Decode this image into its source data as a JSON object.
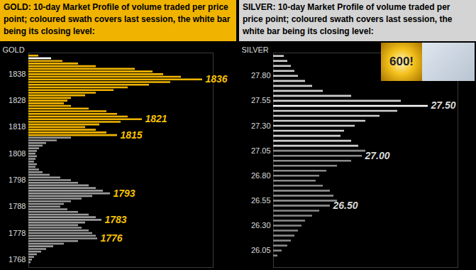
{
  "chart_data": [
    {
      "type": "bar",
      "title": "GOLD:  10-day Market Profile of volume traded per price point; coloured swath covers last session, the white bar being its closing level:",
      "y_label": "GOLD",
      "orientation": "horizontal",
      "tick_labels": "y",
      "categories": [
        1845,
        1844,
        1843,
        1842,
        1841,
        1840,
        1839,
        1838,
        1837,
        1836,
        1835,
        1834,
        1833,
        1832,
        1831,
        1830,
        1829,
        1828,
        1827,
        1826,
        1825,
        1824,
        1823,
        1822,
        1821,
        1820,
        1819,
        1818,
        1817,
        1816,
        1815,
        1814,
        1813,
        1812,
        1811,
        1810,
        1809,
        1808,
        1807,
        1806,
        1805,
        1804,
        1803,
        1802,
        1801,
        1800,
        1799,
        1798,
        1797,
        1796,
        1795,
        1794,
        1793,
        1792,
        1791,
        1790,
        1789,
        1788,
        1787,
        1786,
        1785,
        1784,
        1783,
        1782,
        1781,
        1780,
        1779,
        1778,
        1777,
        1776,
        1775,
        1774,
        1773,
        1772,
        1771,
        1770,
        1769,
        1768,
        1767
      ],
      "values": [
        14,
        32,
        48,
        70,
        95,
        150,
        175,
        190,
        215,
        245,
        200,
        170,
        140,
        120,
        95,
        80,
        60,
        55,
        50,
        60,
        85,
        110,
        125,
        140,
        160,
        130,
        100,
        80,
        95,
        110,
        125,
        60,
        40,
        25,
        20,
        15,
        12,
        10,
        12,
        10,
        8,
        12,
        10,
        15,
        20,
        30,
        45,
        60,
        70,
        85,
        95,
        105,
        115,
        90,
        75,
        60,
        50,
        45,
        55,
        70,
        85,
        95,
        103,
        80,
        70,
        75,
        85,
        90,
        95,
        97,
        70,
        50,
        35,
        25,
        18,
        12,
        8,
        5,
        3
      ],
      "colors": [
        "#f0b400",
        "#ffffff",
        "#f0b400",
        "#f0b400",
        "#f0b400",
        "#f0b400",
        "#f0b400",
        "#f0b400",
        "#f0b400",
        "#f0b400",
        "#f0b400",
        "#f0b400",
        "#f0b400",
        "#f0b400",
        "#f0b400",
        "#f0b400",
        "#f0b400",
        "#f0b400",
        "#f0b400",
        "#f0b400",
        "#f0b400",
        "#f0b400",
        "#f0b400",
        "#f0b400",
        "#f0b400",
        "#f0b400",
        "#f0b400",
        "#f0b400",
        "#f0b400",
        "#f0b400",
        "#f0b400",
        "#9a9a9a",
        "#9a9a9a",
        "#9a9a9a",
        "#9a9a9a",
        "#9a9a9a",
        "#9a9a9a",
        "#9a9a9a",
        "#9a9a9a",
        "#9a9a9a",
        "#9a9a9a",
        "#9a9a9a",
        "#9a9a9a",
        "#9a9a9a",
        "#9a9a9a",
        "#9a9a9a",
        "#9a9a9a",
        "#9a9a9a",
        "#9a9a9a",
        "#9a9a9a",
        "#9a9a9a",
        "#9a9a9a",
        "#9a9a9a",
        "#9a9a9a",
        "#9a9a9a",
        "#9a9a9a",
        "#9a9a9a",
        "#9a9a9a",
        "#9a9a9a",
        "#9a9a9a",
        "#9a9a9a",
        "#9a9a9a",
        "#9a9a9a",
        "#9a9a9a",
        "#9a9a9a",
        "#9a9a9a",
        "#9a9a9a",
        "#9a9a9a",
        "#9a9a9a",
        "#9a9a9a",
        "#9a9a9a",
        "#9a9a9a",
        "#9a9a9a",
        "#9a9a9a",
        "#9a9a9a",
        "#9a9a9a",
        "#9a9a9a",
        "#9a9a9a",
        "#9a9a9a"
      ],
      "xlim": [
        0,
        260
      ],
      "ylim": [
        1765,
        1846
      ],
      "yticks": [
        1768,
        1778,
        1788,
        1798,
        1808,
        1818,
        1828,
        1838
      ],
      "annotations": [
        {
          "text": "1836",
          "y": 1836
        },
        {
          "text": "1821",
          "y": 1821
        },
        {
          "text": "1815",
          "y": 1815
        },
        {
          "text": "1793",
          "y": 1793
        },
        {
          "text": "1783",
          "y": 1783
        },
        {
          "text": "1776",
          "y": 1776
        }
      ]
    },
    {
      "type": "bar",
      "title": "SILVER:  10-day Market Profile of volume traded per price point; coloured swath covers last session, the white bar being its closing level:",
      "y_label": "SILVER",
      "orientation": "horizontal",
      "tick_labels": "y",
      "categories": [
        28.0,
        27.95,
        27.9,
        27.85,
        27.8,
        27.75,
        27.7,
        27.65,
        27.6,
        27.55,
        27.5,
        27.45,
        27.4,
        27.35,
        27.3,
        27.25,
        27.2,
        27.15,
        27.1,
        27.05,
        27.0,
        26.95,
        26.9,
        26.85,
        26.8,
        26.75,
        26.7,
        26.65,
        26.6,
        26.55,
        26.5,
        26.45,
        26.4,
        26.35,
        26.3,
        26.25,
        26.2,
        26.15,
        26.1,
        26.05,
        26.0
      ],
      "values": [
        15,
        20,
        25,
        30,
        35,
        45,
        55,
        70,
        110,
        180,
        218,
        175,
        150,
        130,
        115,
        100,
        95,
        110,
        120,
        130,
        125,
        110,
        90,
        75,
        65,
        60,
        70,
        80,
        85,
        90,
        80,
        65,
        55,
        45,
        40,
        35,
        30,
        25,
        20,
        12,
        6
      ],
      "colors": [
        "#cfcfcf",
        "#cfcfcf",
        "#cfcfcf",
        "#cfcfcf",
        "#cfcfcf",
        "#cfcfcf",
        "#cfcfcf",
        "#cfcfcf",
        "#cfcfcf",
        "#cfcfcf",
        "#ffffff",
        "#cfcfcf",
        "#cfcfcf",
        "#cfcfcf",
        "#cfcfcf",
        "#cfcfcf",
        "#cfcfcf",
        "#cfcfcf",
        "#cfcfcf",
        "#8a8a8a",
        "#8a8a8a",
        "#8a8a8a",
        "#8a8a8a",
        "#8a8a8a",
        "#8a8a8a",
        "#8a8a8a",
        "#8a8a8a",
        "#8a8a8a",
        "#8a8a8a",
        "#8a8a8a",
        "#8a8a8a",
        "#8a8a8a",
        "#8a8a8a",
        "#8a8a8a",
        "#8a8a8a",
        "#8a8a8a",
        "#8a8a8a",
        "#8a8a8a",
        "#8a8a8a",
        "#8a8a8a",
        "#8a8a8a"
      ],
      "xlim": [
        0,
        260
      ],
      "ylim": [
        25.88,
        28.03
      ],
      "yticks": [
        26.05,
        {
          "value": 26.3,
          "label": "26.30"
        },
        26.55,
        {
          "value": 26.8,
          "label": "26.80"
        },
        27.05,
        {
          "value": 27.3,
          "label": "27.30"
        },
        27.55,
        {
          "value": 27.8,
          "label": "27.80"
        }
      ],
      "annotations": [
        {
          "text": "27.50",
          "y": 27.5
        },
        {
          "text": "27.00",
          "y": 27.0
        },
        {
          "text": "26.50",
          "y": 26.5
        }
      ],
      "badge": "600!"
    }
  ]
}
